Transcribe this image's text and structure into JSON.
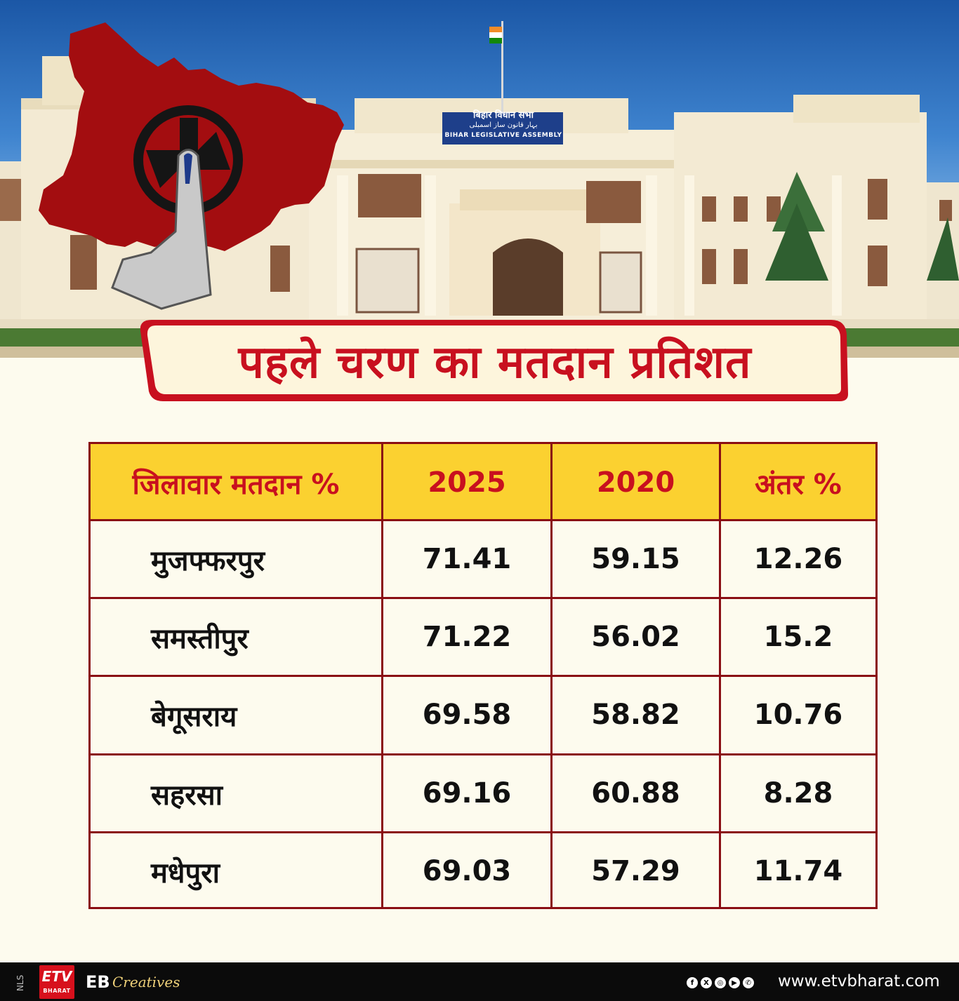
{
  "header": {
    "sign_line1": "बिहार विधान सभा",
    "sign_line2": "بہار قانون ساز اسمبلی",
    "sign_line3": "BIHAR LEGISLATIVE ASSEMBLY",
    "title": "पहले चरण का मतदान प्रतिशत"
  },
  "colors": {
    "title_red": "#c8101f",
    "header_yellow": "#fbd130",
    "border_maroon": "#8a0e14",
    "map_red": "#a30d10"
  },
  "chart_data": {
    "type": "table",
    "columns": [
      "जिलावार मतदान %",
      "2025",
      "2020",
      "अंतर %"
    ],
    "rows": [
      [
        "मुजफ्फरपुर",
        "71.41",
        "59.15",
        "12.26"
      ],
      [
        "समस्तीपुर",
        "71.22",
        "56.02",
        "15.2"
      ],
      [
        "बेगूसराय",
        "69.58",
        "58.82",
        "10.76"
      ],
      [
        "सहरसा",
        "69.16",
        "60.88",
        "8.28"
      ],
      [
        "मधेपुरा",
        "69.03",
        "57.29",
        "11.74"
      ]
    ]
  },
  "footer": {
    "nls": "NLS",
    "logo_text": "ETV",
    "logo_subtext": "BHARAT",
    "eb": "EB",
    "creatives": "Creatives",
    "social_icons": [
      "facebook-icon",
      "x-icon",
      "instagram-icon",
      "youtube-icon",
      "whatsapp-icon"
    ],
    "social_glyphs": [
      "f",
      "X",
      "◎",
      "▶",
      "✆"
    ],
    "website": "www.etvbharat.com"
  }
}
